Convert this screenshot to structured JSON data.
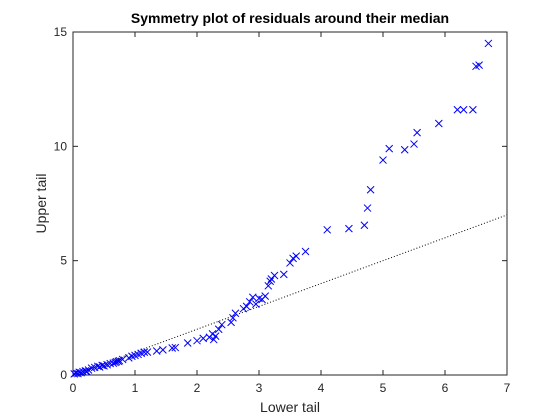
{
  "chart_data": {
    "type": "scatter",
    "title": "Symmetry plot of residuals around their median",
    "xlabel": "Lower tail",
    "ylabel": "Upper tail",
    "xlim": [
      0,
      7
    ],
    "ylim": [
      0,
      15
    ],
    "xticks": [
      0,
      1,
      2,
      3,
      4,
      5,
      6,
      7
    ],
    "yticks": [
      0,
      5,
      10,
      15
    ],
    "xtick_labels": [
      "0",
      "1",
      "2",
      "3",
      "4",
      "5",
      "6",
      "7"
    ],
    "ytick_labels": [
      "0",
      "5",
      "10",
      "15"
    ],
    "grid": false,
    "marker": "x",
    "colors": {
      "points": "#0000ff",
      "reference_line": "#000000",
      "axes": "#262626"
    },
    "reference_line": {
      "style": "dotted",
      "x": [
        0,
        7
      ],
      "y": [
        0,
        7
      ]
    },
    "series": [
      {
        "x": [
          0.02,
          0.05,
          0.08,
          0.1,
          0.13,
          0.16,
          0.2,
          0.22,
          0.25,
          0.3,
          0.35,
          0.4,
          0.43,
          0.47,
          0.5,
          0.55,
          0.6,
          0.65,
          0.68,
          0.7,
          0.73,
          0.75,
          0.8,
          0.9,
          0.95,
          1.0,
          1.05,
          1.1,
          1.15,
          1.2,
          1.35,
          1.45,
          1.6,
          1.65,
          1.85,
          2.0,
          2.1,
          2.2,
          2.25,
          2.27,
          2.3,
          2.35,
          2.4,
          2.55,
          2.58,
          2.62,
          2.75,
          2.8,
          2.85,
          2.9,
          2.95,
          3.0,
          3.05,
          3.1,
          3.15,
          3.18,
          3.2,
          3.25,
          3.4,
          3.5,
          3.55,
          3.6,
          3.75,
          4.1,
          4.45,
          4.7,
          4.75,
          4.8,
          5.0,
          5.1,
          5.35,
          5.5,
          5.55,
          5.9,
          6.2,
          6.3,
          6.45,
          6.5,
          6.55,
          6.7
        ],
        "y": [
          0.05,
          0.08,
          0.06,
          0.12,
          0.1,
          0.15,
          0.18,
          0.16,
          0.22,
          0.3,
          0.33,
          0.38,
          0.35,
          0.42,
          0.4,
          0.45,
          0.5,
          0.52,
          0.55,
          0.58,
          0.6,
          0.62,
          0.68,
          0.75,
          0.82,
          0.86,
          0.9,
          0.95,
          1.0,
          1.0,
          1.05,
          1.1,
          1.18,
          1.2,
          1.4,
          1.5,
          1.6,
          1.65,
          1.8,
          1.55,
          1.7,
          2.0,
          2.2,
          2.3,
          2.5,
          2.7,
          2.9,
          3.0,
          3.2,
          3.4,
          3.1,
          3.35,
          3.3,
          3.45,
          3.9,
          4.1,
          4.2,
          4.35,
          4.4,
          4.9,
          5.1,
          5.2,
          5.4,
          6.35,
          6.4,
          6.55,
          7.3,
          8.1,
          9.4,
          9.9,
          9.85,
          10.1,
          10.6,
          11.0,
          11.6,
          11.6,
          11.6,
          13.5,
          13.55,
          14.5
        ]
      }
    ]
  }
}
